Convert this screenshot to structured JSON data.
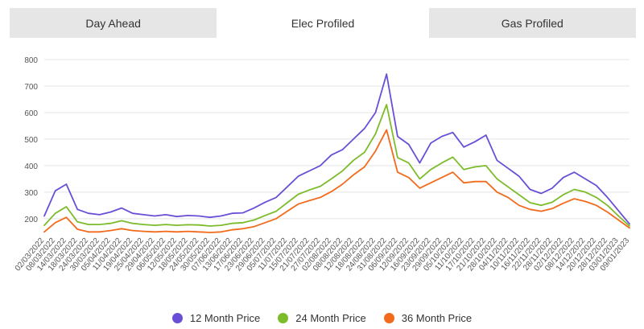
{
  "tabs": [
    {
      "label": "Day Ahead",
      "active": false
    },
    {
      "label": "Elec Profiled",
      "active": true
    },
    {
      "label": "Gas Profiled",
      "active": false
    }
  ],
  "colors": {
    "series_12": "#6a4fd6",
    "series_24": "#7cbc2a",
    "series_36": "#f26b1d",
    "grid": "#e4e4e4",
    "tab_bg": "#e6e6e6"
  },
  "chart_data": {
    "type": "line",
    "yticks": [
      200,
      300,
      400,
      500,
      600,
      700,
      800
    ],
    "ylim": [
      160,
      800
    ],
    "grid": "horizontal",
    "legend_position": "bottom",
    "categories": [
      "02/03/2022",
      "08/03/2022",
      "14/03/2022",
      "18/03/2022",
      "24/03/2022",
      "30/03/2022",
      "05/04/2022",
      "11/04/2022",
      "19/04/2022",
      "25/04/2022",
      "29/04/2022",
      "06/05/2022",
      "12/05/2022",
      "18/05/2022",
      "24/05/2022",
      "30/05/2022",
      "07/06/2022",
      "13/06/2022",
      "17/06/2022",
      "23/06/2022",
      "29/06/2022",
      "05/07/2022",
      "11/07/2022",
      "15/07/2022",
      "21/07/2022",
      "27/07/2022",
      "02/08/2022",
      "08/08/2022",
      "12/08/2022",
      "18/08/2022",
      "24/08/2022",
      "31/08/2022",
      "06/09/2022",
      "12/09/2022",
      "16/09/2022",
      "23/09/2022",
      "29/09/2022",
      "05/10/2022",
      "11/10/2022",
      "17/10/2022",
      "21/10/2022",
      "28/10/2022",
      "04/11/2022",
      "10/11/2022",
      "16/11/2022",
      "22/11/2022",
      "28/11/2022",
      "02/12/2022",
      "08/12/2022",
      "14/12/2022",
      "20/12/2022",
      "28/12/2022",
      "03/01/2023",
      "09/01/2023"
    ],
    "series": [
      {
        "name": "12 Month Price",
        "color": "#6a4fd6",
        "values": [
          210,
          305,
          330,
          235,
          220,
          215,
          225,
          240,
          220,
          215,
          210,
          215,
          208,
          212,
          210,
          205,
          210,
          220,
          222,
          240,
          262,
          280,
          320,
          360,
          380,
          400,
          440,
          460,
          500,
          540,
          600,
          745,
          510,
          480,
          410,
          485,
          510,
          525,
          470,
          490,
          515,
          420,
          390,
          360,
          310,
          295,
          315,
          355,
          375,
          350,
          325,
          280,
          230,
          180
        ]
      },
      {
        "name": "24 Month Price",
        "color": "#7cbc2a",
        "values": [
          175,
          220,
          245,
          188,
          178,
          178,
          182,
          192,
          182,
          178,
          175,
          178,
          175,
          177,
          176,
          172,
          175,
          182,
          185,
          195,
          212,
          228,
          260,
          292,
          308,
          322,
          350,
          380,
          420,
          450,
          520,
          630,
          430,
          410,
          350,
          385,
          410,
          432,
          385,
          395,
          400,
          350,
          320,
          290,
          260,
          250,
          262,
          290,
          310,
          300,
          280,
          250,
          210,
          172
        ]
      },
      {
        "name": "36 Month Price",
        "color": "#f26b1d",
        "values": [
          150,
          185,
          205,
          160,
          150,
          150,
          155,
          162,
          155,
          152,
          150,
          152,
          150,
          152,
          150,
          148,
          150,
          158,
          162,
          170,
          185,
          200,
          228,
          255,
          268,
          280,
          302,
          330,
          365,
          395,
          455,
          535,
          375,
          355,
          315,
          335,
          355,
          375,
          335,
          340,
          340,
          300,
          280,
          250,
          235,
          228,
          238,
          258,
          275,
          265,
          250,
          225,
          195,
          165
        ]
      }
    ]
  }
}
